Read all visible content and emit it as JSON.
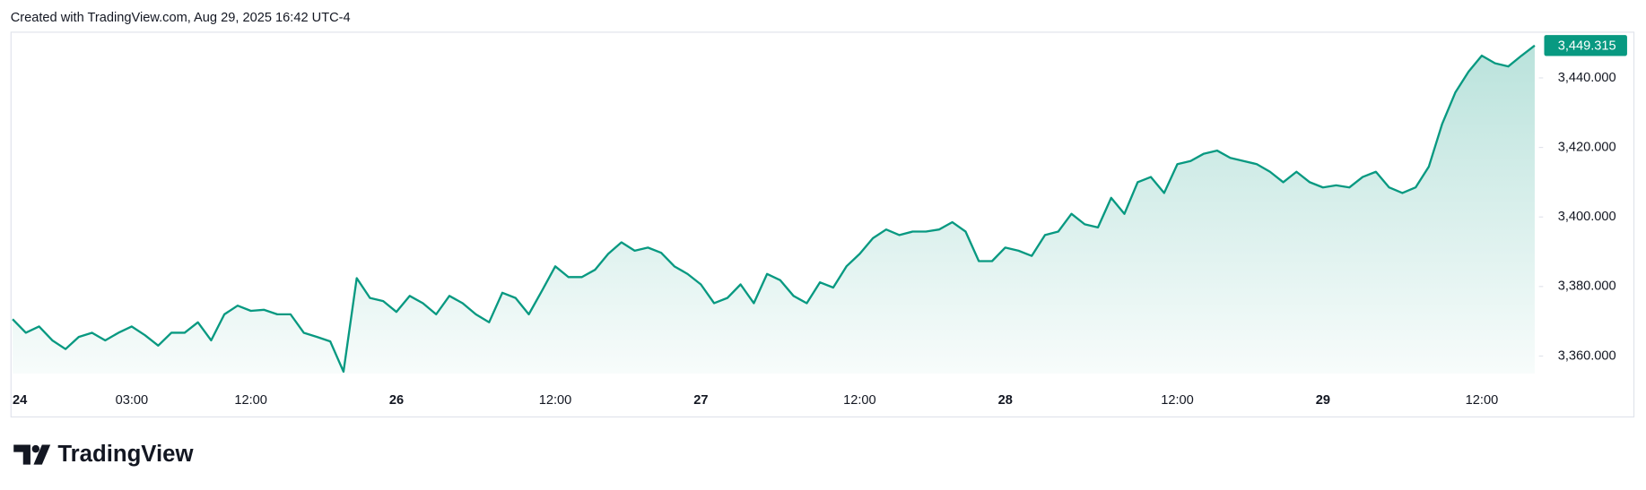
{
  "header": {
    "text": "Created with TradingView.com, Aug 29, 2025 16:42 UTC-4"
  },
  "brand": "TradingView",
  "chart_data": {
    "type": "area",
    "color": "#089981",
    "categories": [
      "24",
      null,
      null,
      null,
      null,
      null,
      null,
      null,
      null,
      "03:00",
      null,
      null,
      null,
      null,
      null,
      null,
      null,
      null,
      "12:00",
      null,
      null,
      null,
      null,
      null,
      null,
      null,
      null,
      null,
      null,
      "26",
      null,
      null,
      null,
      null,
      null,
      null,
      null,
      null,
      null,
      null,
      null,
      "12:00",
      null,
      null,
      null,
      null,
      null,
      null,
      null,
      null,
      null,
      null,
      "27",
      null,
      null,
      null,
      null,
      null,
      null,
      null,
      null,
      null,
      null,
      null,
      "12:00",
      null,
      null,
      null,
      null,
      null,
      null,
      null,
      null,
      null,
      null,
      "28",
      null,
      null,
      null,
      null,
      null,
      null,
      null,
      null,
      null,
      null,
      null,
      null,
      "12:00",
      null,
      null,
      null,
      null,
      null,
      null,
      null,
      null,
      null,
      null,
      "29",
      null,
      null,
      null,
      null,
      null,
      null,
      null,
      null,
      null,
      null,
      null,
      "12:00",
      null,
      null,
      null,
      null
    ],
    "values": [
      3370.6,
      3366.7,
      3368.5,
      3364.5,
      3362.0,
      3365.5,
      3366.7,
      3364.5,
      3366.7,
      3368.5,
      3366.0,
      3363.0,
      3366.7,
      3366.7,
      3369.7,
      3364.5,
      3372.0,
      3374.5,
      3373.0,
      3373.3,
      3372.0,
      3372.0,
      3366.7,
      3365.5,
      3364.2,
      3355.5,
      3382.4,
      3376.7,
      3375.8,
      3372.7,
      3377.3,
      3375.2,
      3372.0,
      3377.3,
      3375.2,
      3372.0,
      3369.7,
      3378.2,
      3376.7,
      3372.0,
      3378.8,
      3385.8,
      3382.7,
      3382.7,
      3384.8,
      3389.4,
      3392.7,
      3390.3,
      3391.2,
      3389.7,
      3385.8,
      3383.6,
      3380.6,
      3375.2,
      3376.7,
      3380.6,
      3375.2,
      3383.6,
      3381.8,
      3377.3,
      3375.2,
      3381.2,
      3379.7,
      3385.8,
      3389.4,
      3393.9,
      3396.4,
      3394.8,
      3395.8,
      3395.8,
      3396.4,
      3398.5,
      3395.8,
      3387.3,
      3387.3,
      3391.2,
      3390.3,
      3388.8,
      3394.8,
      3395.8,
      3400.9,
      3397.9,
      3397.0,
      3405.5,
      3400.9,
      3410.0,
      3411.5,
      3406.9,
      3415.2,
      3416.1,
      3418.2,
      3419.1,
      3417.0,
      3416.1,
      3415.2,
      3413.0,
      3410.0,
      3413.0,
      3410.0,
      3408.5,
      3409.1,
      3408.5,
      3411.5,
      3413.0,
      3408.5,
      3406.9,
      3408.5,
      3414.5,
      3426.7,
      3435.8,
      3441.8,
      3446.4,
      3444.2,
      3443.3,
      3446.4,
      3449.315
    ],
    "ylim": [
      3355,
      3453
    ],
    "yticks": [
      {
        "value": 3360,
        "label": "3,360.000"
      },
      {
        "value": 3380,
        "label": "3,380.000"
      },
      {
        "value": 3400,
        "label": "3,400.000"
      },
      {
        "value": 3420,
        "label": "3,420.000"
      },
      {
        "value": 3440,
        "label": "3,440.000"
      }
    ],
    "last_price": {
      "value": 3449.315,
      "label": "3,449.315"
    }
  }
}
